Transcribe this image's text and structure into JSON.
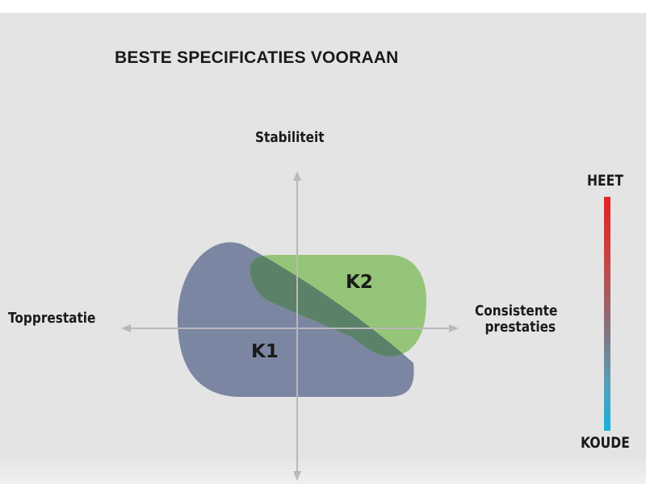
{
  "title": "BESTE SPECIFICATIES VOORAAN",
  "axes": {
    "top": "Stabiliteit",
    "left": "Topprestatie",
    "right_line1": "Consistente",
    "right_line2": "prestaties"
  },
  "regions": {
    "k1": {
      "label": "K1",
      "color": "#7b86a3"
    },
    "k2": {
      "label": "K2",
      "color": "#95c578"
    }
  },
  "overlap_color": "#5b8168",
  "heat_scale": {
    "hot_label": "HEET",
    "cold_label": "KOUDE",
    "hot_color": "#e22322",
    "cold_color": "#16b3dc"
  }
}
